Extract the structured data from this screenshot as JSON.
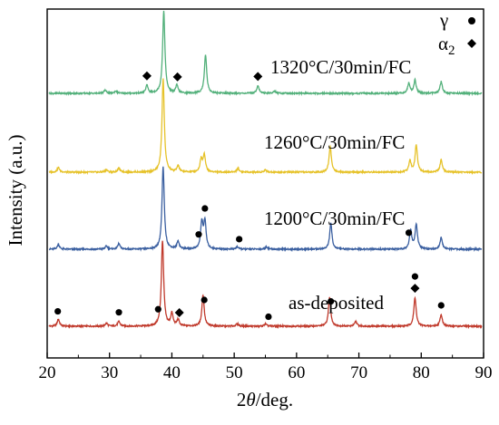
{
  "chart_data": {
    "type": "line",
    "title": "",
    "xlabel": "2θ/deg.",
    "xlabel_parts": {
      "two": "2",
      "theta": "θ",
      "unit": "/deg."
    },
    "ylabel": "Intensity (a.u.)",
    "xlim": [
      20,
      90
    ],
    "xticks": [
      20,
      30,
      40,
      50,
      60,
      70,
      80,
      90
    ],
    "yticks": "none",
    "grid": false,
    "legend": {
      "placement": "top-right",
      "entries": [
        {
          "label": "γ",
          "marker": "circle"
        },
        {
          "label": "α",
          "subscript": "2",
          "marker": "diamond"
        }
      ]
    },
    "series": [
      {
        "name": "as-deposited",
        "color": "#c0392b",
        "peaks": [
          [
            21.8,
            0.9
          ],
          [
            29.5,
            0.4
          ],
          [
            31.5,
            0.6
          ],
          [
            38.5,
            11.0
          ],
          [
            40.0,
            1.6
          ],
          [
            41.0,
            0.8
          ],
          [
            45.0,
            4.0
          ],
          [
            50.5,
            0.3
          ],
          [
            55.0,
            0.3
          ],
          [
            65.3,
            3.7
          ],
          [
            69.5,
            0.6
          ],
          [
            79.0,
            3.7
          ],
          [
            83.2,
            1.5
          ]
        ],
        "markers": [
          {
            "x": 21.7,
            "type": "circle"
          },
          {
            "x": 31.5,
            "type": "circle"
          },
          {
            "x": 37.8,
            "type": "circle"
          },
          {
            "x": 41.2,
            "type": "diamond"
          },
          {
            "x": 45.2,
            "type": "circle"
          },
          {
            "x": 55.5,
            "type": "circle"
          },
          {
            "x": 65.5,
            "type": "circle"
          },
          {
            "x": 79.0,
            "type": "diamond"
          },
          {
            "x": 79.0,
            "type": "circle"
          },
          {
            "x": 83.2,
            "type": "circle"
          }
        ]
      },
      {
        "name": "1200°C/30min/FC",
        "color": "#3a5fa0",
        "peaks": [
          [
            21.8,
            0.6
          ],
          [
            29.5,
            0.4
          ],
          [
            31.5,
            0.7
          ],
          [
            38.6,
            10.5
          ],
          [
            41.0,
            1.0
          ],
          [
            44.8,
            3.4
          ],
          [
            45.3,
            3.5
          ],
          [
            50.5,
            0.3
          ],
          [
            55.2,
            0.3
          ],
          [
            65.5,
            3.3
          ],
          [
            78.3,
            2.4
          ],
          [
            79.2,
            3.2
          ],
          [
            83.2,
            1.5
          ]
        ],
        "markers": [
          {
            "x": 44.3,
            "type": "circle"
          },
          {
            "x": 45.3,
            "type": "circle"
          },
          {
            "x": 50.8,
            "type": "circle"
          },
          {
            "x": 78.0,
            "type": "circle"
          }
        ]
      },
      {
        "name": "1260°C/30min/FC",
        "color": "#e6c229",
        "peaks": [
          [
            21.8,
            0.6
          ],
          [
            29.5,
            0.3
          ],
          [
            31.5,
            0.5
          ],
          [
            38.6,
            12.0
          ],
          [
            41.0,
            0.8
          ],
          [
            44.7,
            1.6
          ],
          [
            45.2,
            2.2
          ],
          [
            50.6,
            0.5
          ],
          [
            55.0,
            0.3
          ],
          [
            65.4,
            3.3
          ],
          [
            78.2,
            1.4
          ],
          [
            79.2,
            3.5
          ],
          [
            83.2,
            1.6
          ]
        ],
        "markers": []
      },
      {
        "name": "1320°C/30min/FC",
        "color": "#52b07a",
        "peaks": [
          [
            29.3,
            0.4
          ],
          [
            31.0,
            0.3
          ],
          [
            36.0,
            1.0
          ],
          [
            38.7,
            10.5
          ],
          [
            40.8,
            1.0
          ],
          [
            45.4,
            5.0
          ],
          [
            53.8,
            1.0
          ],
          [
            56.5,
            0.3
          ],
          [
            78.0,
            1.3
          ],
          [
            79.0,
            1.7
          ],
          [
            83.2,
            1.5
          ]
        ],
        "markers": [
          {
            "x": 36.0,
            "type": "diamond"
          },
          {
            "x": 40.9,
            "type": "diamond"
          },
          {
            "x": 53.8,
            "type": "diamond"
          }
        ]
      }
    ]
  }
}
